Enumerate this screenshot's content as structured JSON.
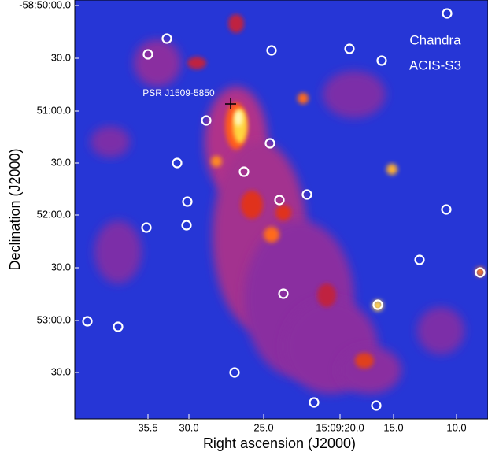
{
  "image": {
    "annotations": {
      "instrument_line1": "Chandra",
      "instrument_line2": "ACIS-S3",
      "pulsar": "PSR J1509-5850"
    },
    "x_axis": {
      "label": "Right ascension (J2000)",
      "ticks": [
        "35.5",
        "30.0",
        "25.0",
        "15:09:20.0",
        "15.0",
        "10.0"
      ]
    },
    "y_axis": {
      "label": "Declination (J2000)",
      "ticks": [
        "-58:50:00.0",
        "30.0",
        "51:00.0",
        "30.0",
        "52:00.0",
        "30.0",
        "53:00.0",
        "30.0"
      ]
    }
  }
}
